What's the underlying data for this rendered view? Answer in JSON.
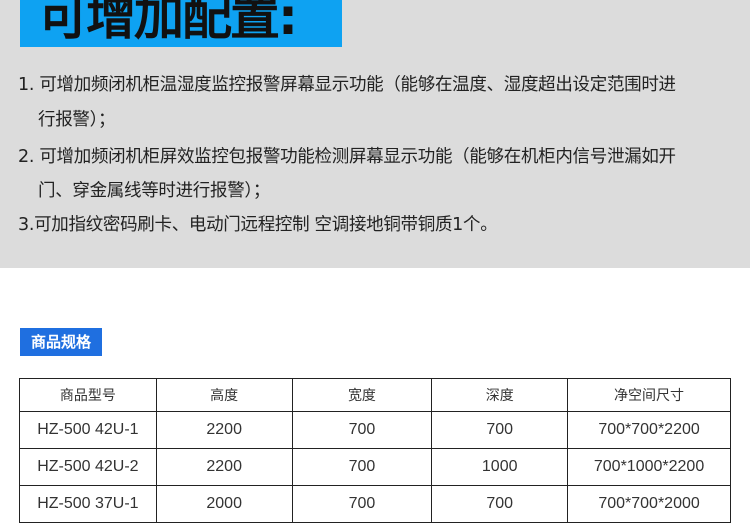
{
  "title": "可增加配置:",
  "lines": [
    "1. 可增加频闭机柜温湿度监控报警屏幕显示功能（能够在温度、湿度超出设定范围时进",
    "行报警）；",
    "2. 可增加频闭机柜屏效监控包报警功能检测屏幕显示功能（能够在机柜内信号泄漏如开",
    "门、穿金属线等时进行报警）；",
    "3.可加指纹密码刷卡、电动门远程控制 空调接地铜带铜质1个。"
  ],
  "spec_tag": "商品规格",
  "table": {
    "headers": [
      "商品型号",
      "高度",
      "宽度",
      "深度",
      "净空间尺寸"
    ],
    "rows": [
      [
        "HZ-500 42U-1",
        "2200",
        "700",
        "700",
        "700*700*2200"
      ],
      [
        "HZ-500 42U-2",
        "2200",
        "700",
        "1000",
        "700*1000*2200"
      ],
      [
        "HZ-500 37U-1",
        "2000",
        "700",
        "700",
        "700*700*2000"
      ]
    ]
  },
  "colors": {
    "title_bg": "#0ea2f2",
    "tag_bg": "#1f6fe0",
    "top_bg": "#dcdcdc"
  }
}
